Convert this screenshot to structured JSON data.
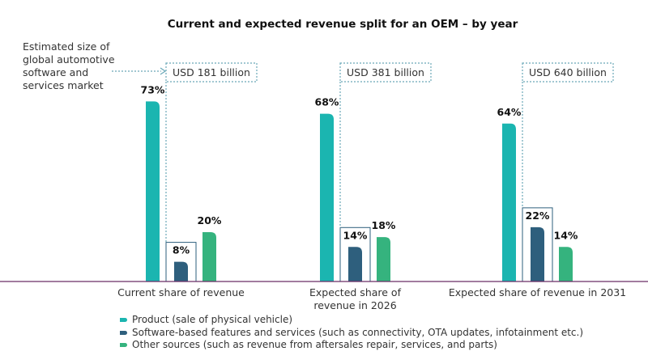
{
  "chart_data": {
    "type": "bar",
    "title": "Current and expected revenue split for an OEM –  by year",
    "annotation": "Estimated size of global automotive software and services market",
    "annotation_lines": [
      "Estimated size of",
      "global automotive",
      "software and",
      "services market"
    ],
    "categories": [
      "Current share of revenue",
      "Expected share of revenue in 2026",
      "Expected share of revenue in 2031"
    ],
    "category_lines": [
      [
        "Current share of revenue"
      ],
      [
        "Expected share of",
        "revenue in 2026"
      ],
      [
        "Expected share of revenue in 2031"
      ]
    ],
    "market_size_labels": [
      "USD 181 billion",
      "USD 381 billion",
      "USD 640 billion"
    ],
    "series": [
      {
        "name": "Product (sale of physical vehicle)",
        "values": [
          73,
          68,
          64
        ],
        "color": "#1bb5b0"
      },
      {
        "name": "Software-based features and services (such as connectivity, OTA updates, infotainment etc.)",
        "values": [
          8,
          14,
          22
        ],
        "color": "#2e5f7d"
      },
      {
        "name": "Other sources (such as revenue from aftersales repair, services, and parts)",
        "values": [
          20,
          18,
          14
        ],
        "color": "#35b37e"
      }
    ],
    "unit": "%",
    "ylim": [
      0,
      80
    ],
    "colors": {
      "axis": "#6b2f66",
      "box_border": "#2e5f7d",
      "dotted": "#6aa8b8"
    }
  }
}
